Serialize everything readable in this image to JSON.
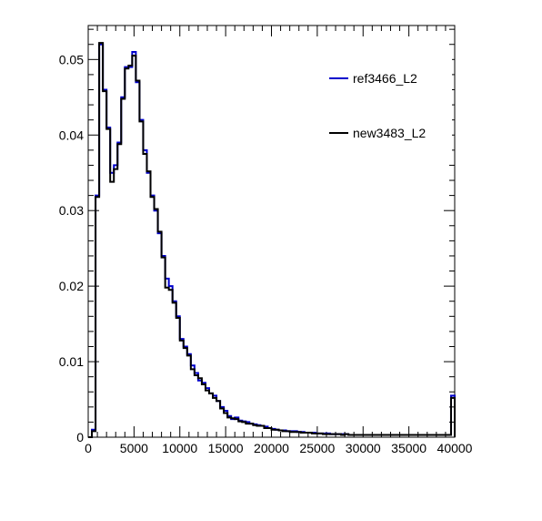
{
  "chart_data": {
    "type": "histogram",
    "xlim": [
      0,
      40000
    ],
    "ylim": [
      0,
      0.0545
    ],
    "bin_width": 400,
    "x_ticks": [
      0,
      5000,
      10000,
      15000,
      20000,
      25000,
      30000,
      35000,
      40000
    ],
    "x_tick_labels": [
      "0",
      "5000",
      "10000",
      "15000",
      "20000",
      "25000",
      "30000",
      "35000",
      "40000"
    ],
    "y_ticks": [
      0,
      0.01,
      0.02,
      0.03,
      0.04,
      0.05
    ],
    "y_tick_labels": [
      "0",
      "0.01",
      "0.02",
      "0.03",
      "0.04",
      "0.05"
    ],
    "legend_position": "top-right",
    "series": [
      {
        "name": "ref3466_L2",
        "color": "#0000cc",
        "values": [
          0,
          0.001,
          0.032,
          0.052,
          0.046,
          0.041,
          0.035,
          0.036,
          0.039,
          0.045,
          0.049,
          0.049,
          0.051,
          0.047,
          0.042,
          0.038,
          0.035,
          0.032,
          0.03,
          0.027,
          0.024,
          0.021,
          0.02,
          0.018,
          0.016,
          0.013,
          0.012,
          0.011,
          0.0095,
          0.0085,
          0.0075,
          0.0072,
          0.0065,
          0.0058,
          0.0055,
          0.0048,
          0.004,
          0.0035,
          0.0028,
          0.0024,
          0.0026,
          0.0022,
          0.0021,
          0.002,
          0.0018,
          0.0017,
          0.0016,
          0.0015,
          0.0014,
          0.0012,
          0.0011,
          0.001,
          0.0009,
          0.0009,
          0.0008,
          0.0008,
          0.0008,
          0.0007,
          0.0007,
          0.0006,
          0.0006,
          0.0006,
          0.0005,
          0.0005,
          0.0005,
          0.0005,
          0.0004,
          0.0004,
          0.0004,
          0.0004,
          0.0004,
          0.0003,
          0.0003,
          0.0003,
          0.0003,
          0.0003,
          0.0003,
          0.0003,
          0.0003,
          0.0003,
          0.0003,
          0.0003,
          0.0003,
          0.0003,
          0.0003,
          0.0003,
          0.0003,
          0.0003,
          0.0003,
          0.0003,
          0.0003,
          0.0003,
          0.0003,
          0.0003,
          0.0003,
          0.0003,
          0.0003,
          0.0003,
          0.0003,
          0.0055
        ]
      },
      {
        "name": "new3483_L2",
        "color": "#000000",
        "values": [
          0,
          0.0008,
          0.0318,
          0.0522,
          0.0458,
          0.0408,
          0.0338,
          0.0355,
          0.0388,
          0.0448,
          0.0488,
          0.0492,
          0.0505,
          0.0472,
          0.0418,
          0.0375,
          0.0352,
          0.0318,
          0.0302,
          0.0272,
          0.0238,
          0.0198,
          0.0195,
          0.0178,
          0.0158,
          0.0128,
          0.0118,
          0.0108,
          0.009,
          0.0082,
          0.0078,
          0.007,
          0.0062,
          0.0058,
          0.0052,
          0.0048,
          0.0038,
          0.0032,
          0.0026,
          0.0025,
          0.0024,
          0.0021,
          0.002,
          0.0018,
          0.0018,
          0.0016,
          0.0015,
          0.0015,
          0.0012,
          0.0012,
          0.001,
          0.001,
          0.0009,
          0.0008,
          0.0008,
          0.0007,
          0.0007,
          0.0007,
          0.0006,
          0.0006,
          0.0006,
          0.0005,
          0.0005,
          0.0005,
          0.0004,
          0.0004,
          0.0004,
          0.0004,
          0.0004,
          0.0003,
          0.0004,
          0.0003,
          0.0003,
          0.0003,
          0.0003,
          0.0003,
          0.0003,
          0.0003,
          0.0003,
          0.0003,
          0.0003,
          0.0003,
          0.0003,
          0.0003,
          0.0003,
          0.0003,
          0.0003,
          0.0003,
          0.0003,
          0.0003,
          0.0003,
          0.0003,
          0.0003,
          0.0003,
          0.0003,
          0.0003,
          0.0003,
          0.0003,
          0.0003,
          0.0052
        ]
      }
    ]
  }
}
